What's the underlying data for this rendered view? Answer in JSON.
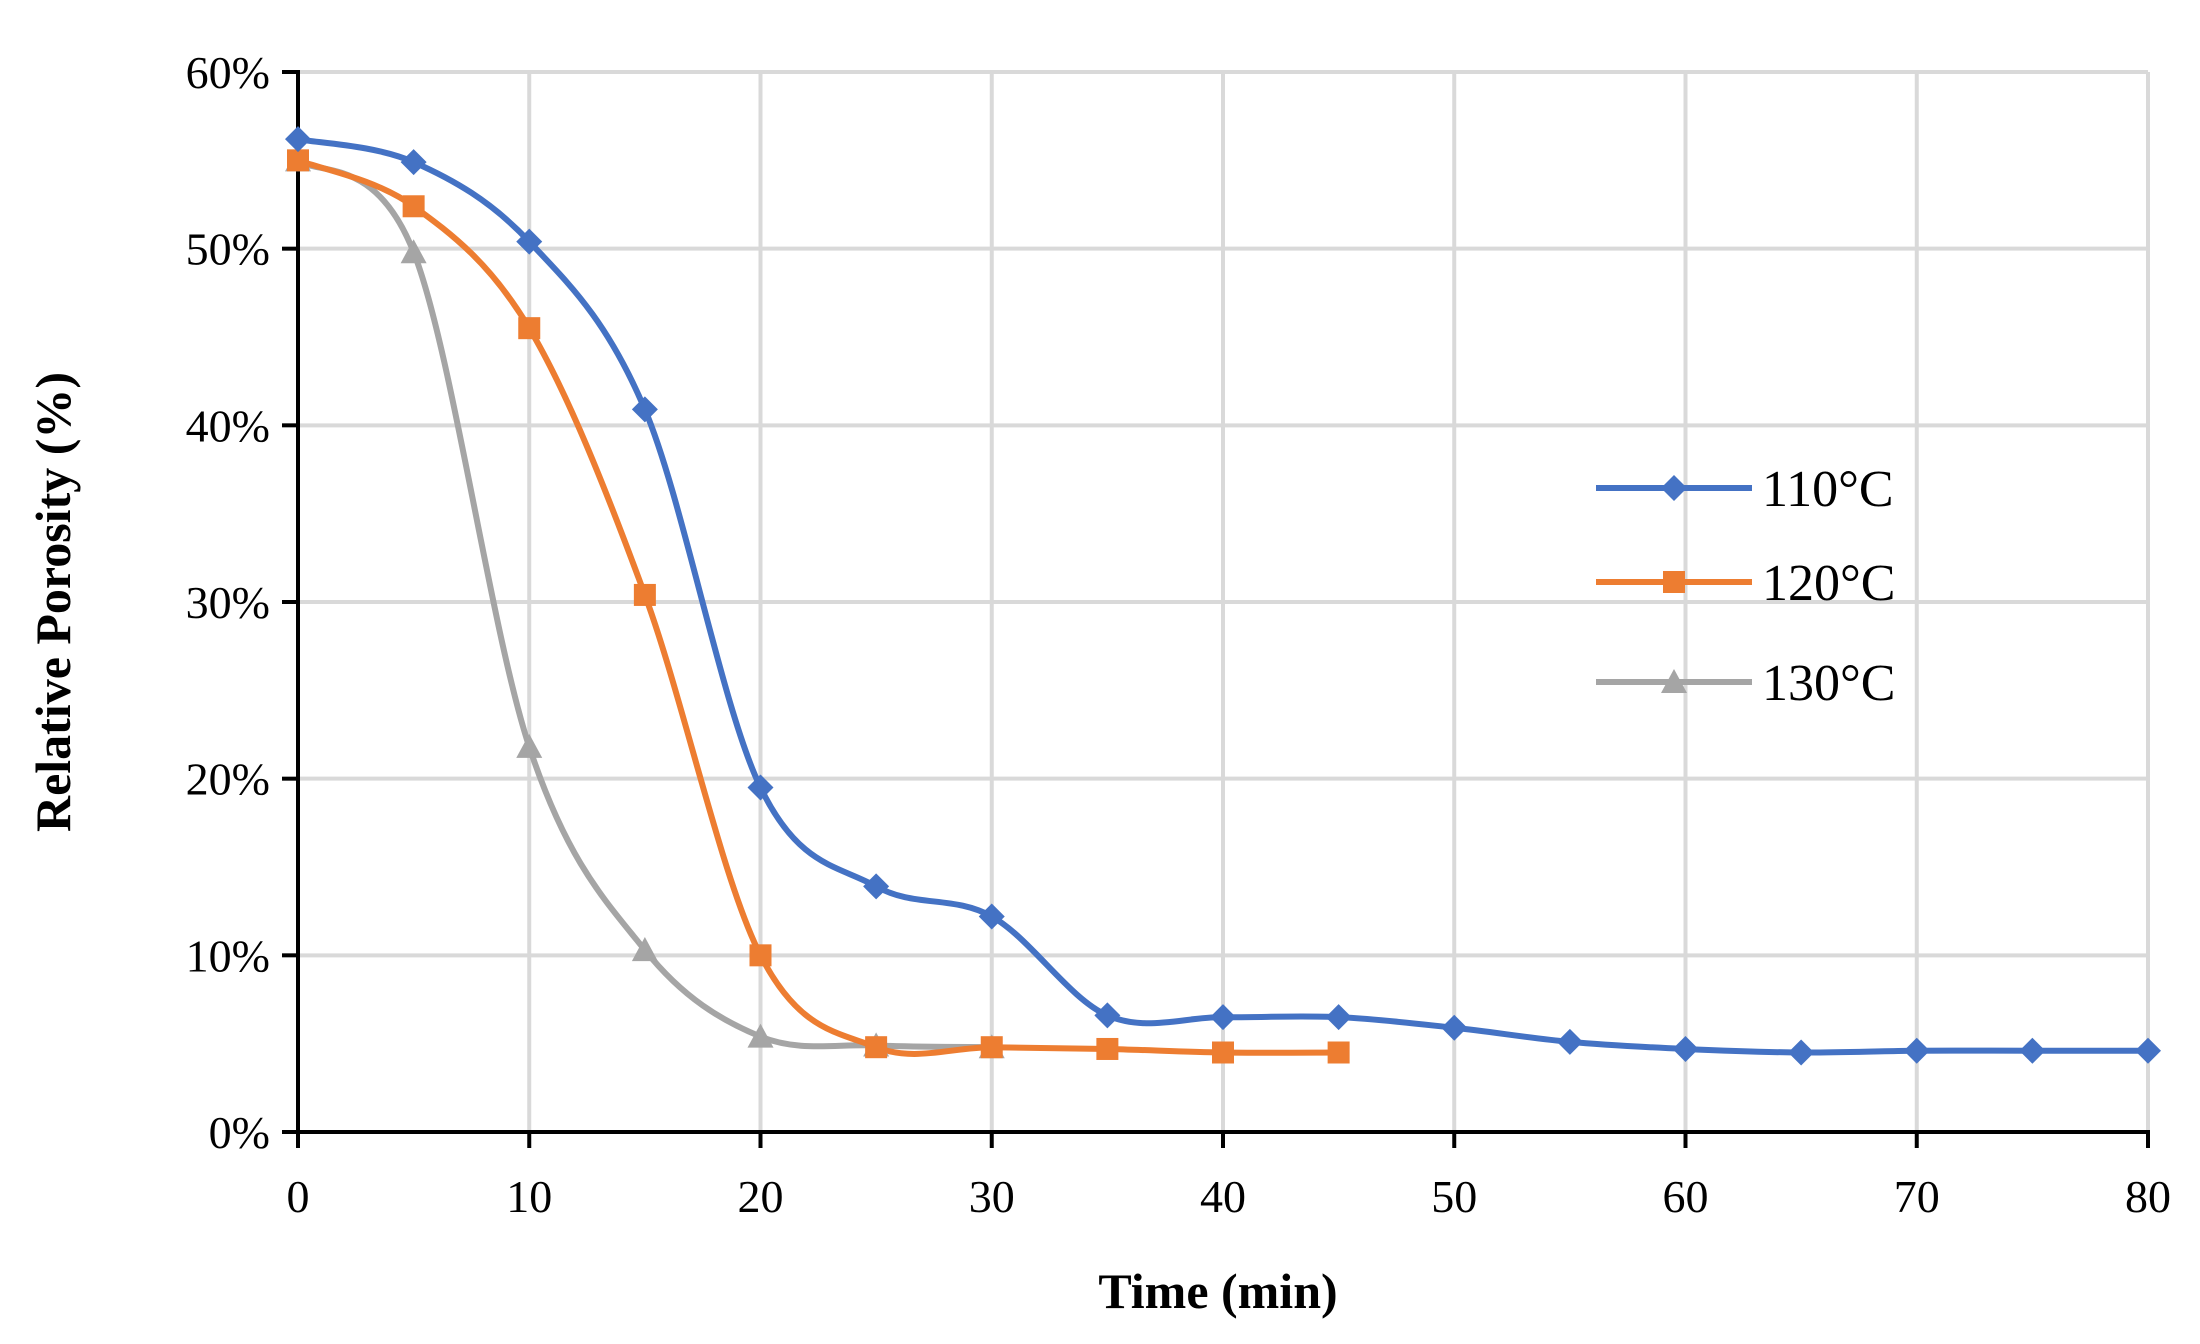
{
  "chart_data": {
    "type": "line",
    "title": "",
    "xlabel": "Time (min)",
    "ylabel": "Relative Porosity (%)",
    "xlim": [
      0,
      80
    ],
    "ylim": [
      0,
      60
    ],
    "x_ticks": [
      0,
      10,
      20,
      30,
      40,
      50,
      60,
      70,
      80
    ],
    "x_tick_labels": [
      "0",
      "10",
      "20",
      "30",
      "40",
      "50",
      "60",
      "70",
      "80"
    ],
    "y_ticks": [
      0,
      10,
      20,
      30,
      40,
      50,
      60
    ],
    "y_tick_labels": [
      "0%",
      "10%",
      "20%",
      "30%",
      "40%",
      "50%",
      "60%"
    ],
    "grid": true,
    "legend_position": "right",
    "series": [
      {
        "name": "110°C",
        "color": "#4472C4",
        "marker": "diamond",
        "x": [
          0,
          5,
          10,
          15,
          20,
          25,
          30,
          35,
          40,
          45,
          50,
          55,
          60,
          65,
          70,
          75,
          80
        ],
        "values": [
          56.2,
          54.9,
          50.4,
          40.9,
          19.5,
          13.9,
          12.2,
          6.6,
          6.5,
          6.5,
          5.9,
          5.1,
          4.7,
          4.5,
          4.6,
          4.6,
          4.6
        ]
      },
      {
        "name": "120°C",
        "color": "#ED7D31",
        "marker": "square",
        "x": [
          0,
          5,
          10,
          15,
          20,
          25,
          30,
          35,
          40,
          45
        ],
        "values": [
          55.0,
          52.4,
          45.5,
          30.4,
          10.0,
          4.8,
          4.8,
          4.7,
          4.5,
          4.5
        ]
      },
      {
        "name": "130°C",
        "color": "#A5A5A5",
        "marker": "triangle",
        "x": [
          0,
          5,
          10,
          15,
          20,
          25,
          30
        ],
        "values": [
          55.0,
          49.8,
          21.8,
          10.3,
          5.4,
          4.9,
          4.8
        ]
      }
    ]
  }
}
